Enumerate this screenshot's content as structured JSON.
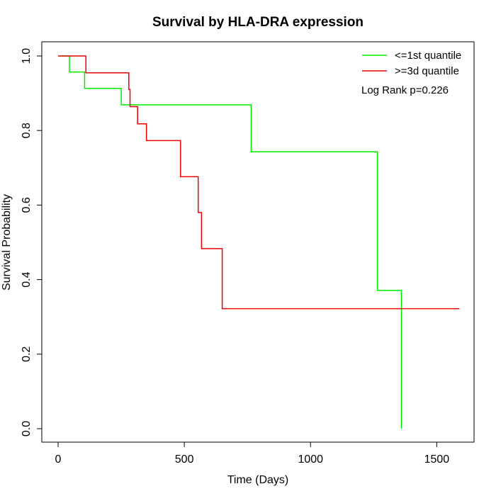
{
  "chart_data": {
    "type": "line",
    "subtype": "kaplan-meier step",
    "title": "Survival by HLA-DRA expression",
    "xlabel": "Time (Days)",
    "ylabel": "Survival Probability",
    "xlim": [
      0,
      1600
    ],
    "ylim": [
      0,
      1
    ],
    "x_ticks": [
      0,
      500,
      1000,
      1500
    ],
    "x_tick_labels": [
      "0",
      "500",
      "1000",
      "1500"
    ],
    "y_ticks": [
      0,
      0.2,
      0.4,
      0.6,
      0.8,
      1
    ],
    "y_tick_labels": [
      "0.0",
      "0.2",
      "0.4",
      "0.6",
      "0.8",
      "1.0"
    ],
    "grid": false,
    "legend_position": "top-right",
    "annotation": "Log Rank p=0.226",
    "series": [
      {
        "name": "<=1st quantile",
        "color": "#00ee00",
        "points": [
          [
            0,
            1.0
          ],
          [
            45,
            1.0
          ],
          [
            45,
            0.957
          ],
          [
            105,
            0.957
          ],
          [
            105,
            0.913
          ],
          [
            250,
            0.913
          ],
          [
            250,
            0.869
          ],
          [
            765,
            0.869
          ],
          [
            765,
            0.743
          ],
          [
            1265,
            0.743
          ],
          [
            1265,
            0.371
          ],
          [
            1360,
            0.371
          ],
          [
            1360,
            0.0
          ]
        ]
      },
      {
        "name": ">=3d quantile",
        "color": "#ee0000",
        "points": [
          [
            0,
            1.0
          ],
          [
            110,
            1.0
          ],
          [
            110,
            0.955
          ],
          [
            280,
            0.955
          ],
          [
            280,
            0.91
          ],
          [
            285,
            0.91
          ],
          [
            285,
            0.864
          ],
          [
            315,
            0.864
          ],
          [
            315,
            0.818
          ],
          [
            350,
            0.818
          ],
          [
            350,
            0.773
          ],
          [
            485,
            0.773
          ],
          [
            485,
            0.676
          ],
          [
            555,
            0.676
          ],
          [
            555,
            0.58
          ],
          [
            568,
            0.58
          ],
          [
            568,
            0.483
          ],
          [
            650,
            0.483
          ],
          [
            650,
            0.322
          ],
          [
            1590,
            0.322
          ]
        ]
      }
    ]
  }
}
